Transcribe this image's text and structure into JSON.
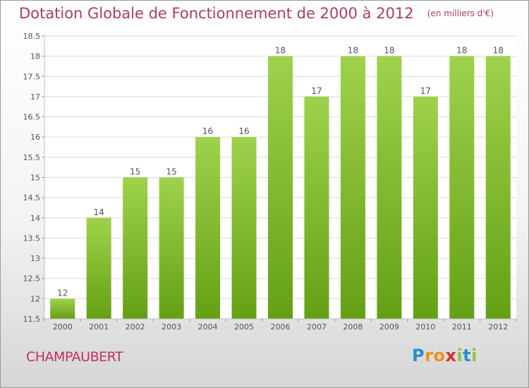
{
  "chart_data": {
    "type": "bar",
    "title": "Dotation Globale de Fonctionnement de 2000 à 2012",
    "unit": "(en milliers d'€)",
    "xlabel": "",
    "ylabel": "",
    "categories": [
      "2000",
      "2001",
      "2002",
      "2003",
      "2004",
      "2005",
      "2006",
      "2007",
      "2008",
      "2009",
      "2010",
      "2011",
      "2012"
    ],
    "values": [
      12,
      14,
      15,
      15,
      16,
      16,
      18,
      17,
      18,
      18,
      17,
      18,
      18
    ],
    "data_labels": [
      "12",
      "14",
      "15",
      "15",
      "16",
      "16",
      "18",
      "17",
      "18",
      "18",
      "17",
      "18",
      "18"
    ],
    "ylim": [
      11.5,
      18.5
    ],
    "yticks": [
      11.5,
      12,
      12.5,
      13,
      13.5,
      14,
      14.5,
      15,
      15.5,
      16,
      16.5,
      17,
      17.5,
      18,
      18.5
    ],
    "ytick_labels": [
      "11.5",
      "12",
      "12.5",
      "13",
      "13.5",
      "14",
      "14.5",
      "15",
      "15.5",
      "16",
      "16.5",
      "17",
      "17.5",
      "18",
      "18.5"
    ],
    "grid": true,
    "legend": "none",
    "colors": {
      "bar_light": "#9fd24c",
      "bar_dark": "#64a014",
      "title": "#b03a6a",
      "grid": "#d9d9d9",
      "axis_text": "#555555"
    }
  },
  "footer": {
    "commune": "CHAMPAUBERT",
    "logo_letters": [
      "P",
      "r",
      "o",
      "x",
      "i",
      "t",
      "i"
    ],
    "logo_colors": [
      "#2a8ecf",
      "#e8921c",
      "#e8921c",
      "#d2312f",
      "#8cc63f",
      "#2a8ecf",
      "#8cc63f"
    ]
  }
}
